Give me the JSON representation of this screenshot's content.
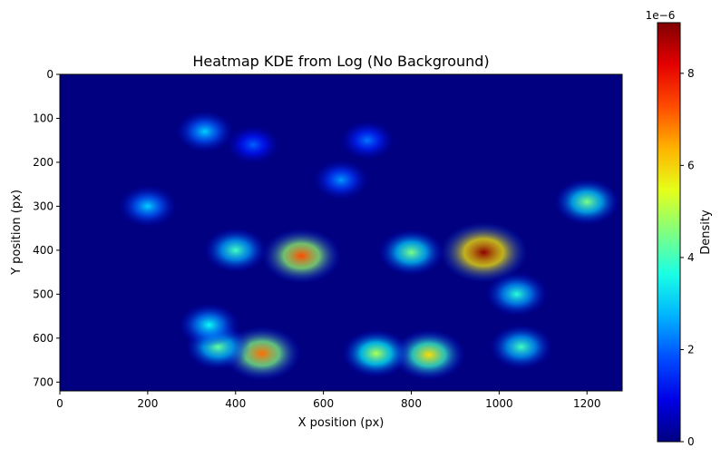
{
  "chart_data": {
    "type": "heatmap",
    "title": "Heatmap KDE from Log (No Background)",
    "xlabel": "X position (px)",
    "ylabel": "Y position (px)",
    "xlim": [
      0,
      1280
    ],
    "ylim": [
      720,
      0
    ],
    "y_inverted": true,
    "x_ticks": [
      0,
      200,
      400,
      600,
      800,
      1000,
      1200
    ],
    "x_tick_labels": [
      "0",
      "200",
      "400",
      "600",
      "800",
      "1000",
      "1200"
    ],
    "y_ticks": [
      0,
      100,
      200,
      300,
      400,
      500,
      600,
      700
    ],
    "y_tick_labels": [
      "0",
      "100",
      "200",
      "300",
      "400",
      "500",
      "600",
      "700"
    ],
    "grid": false,
    "colormap": "jet",
    "colorbar": {
      "label": "Density",
      "range": [
        0,
        9.1e-06
      ],
      "ticks": [
        0,
        2e-06,
        4e-06,
        6e-06,
        8e-06
      ],
      "tick_labels": [
        "0",
        "2",
        "4",
        "6",
        "8"
      ],
      "offset_label": "1e−6"
    },
    "hotspots": [
      {
        "x": 965,
        "y": 405,
        "density": 9e-06
      },
      {
        "x": 550,
        "y": 413,
        "density": 7.3e-06
      },
      {
        "x": 460,
        "y": 635,
        "density": 7e-06
      },
      {
        "x": 840,
        "y": 638,
        "density": 6e-06
      },
      {
        "x": 720,
        "y": 635,
        "density": 5e-06
      },
      {
        "x": 1200,
        "y": 290,
        "density": 4.5e-06
      },
      {
        "x": 800,
        "y": 405,
        "density": 4.5e-06
      },
      {
        "x": 360,
        "y": 620,
        "density": 4.3e-06
      },
      {
        "x": 1050,
        "y": 620,
        "density": 4e-06
      },
      {
        "x": 400,
        "y": 400,
        "density": 4e-06
      },
      {
        "x": 1040,
        "y": 500,
        "density": 3.8e-06
      },
      {
        "x": 340,
        "y": 570,
        "density": 3.5e-06
      },
      {
        "x": 330,
        "y": 130,
        "density": 3e-06
      },
      {
        "x": 200,
        "y": 300,
        "density": 3e-06
      },
      {
        "x": 640,
        "y": 240,
        "density": 2.5e-06
      },
      {
        "x": 700,
        "y": 150,
        "density": 2.2e-06
      },
      {
        "x": 440,
        "y": 160,
        "density": 2e-06
      }
    ]
  }
}
